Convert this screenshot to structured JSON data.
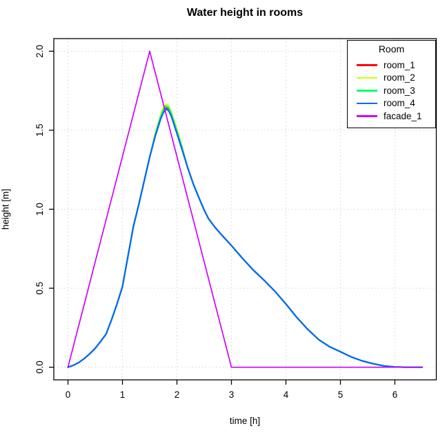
{
  "figure": {
    "title": "Water height in rooms",
    "x_axis_label": "time [h]",
    "y_axis_label": "height [m]"
  },
  "chart_data": {
    "type": "line",
    "title": "Water height in rooms",
    "xlabel": "time [h]",
    "ylabel": "height [m]",
    "xlim": [
      0,
      6.5
    ],
    "ylim": [
      0,
      2
    ],
    "xticks": [
      0,
      1,
      2,
      3,
      4,
      5,
      6
    ],
    "xtick_labels": [
      "0",
      "1",
      "2",
      "3",
      "4",
      "5",
      "6"
    ],
    "yticks": [
      0,
      0.5,
      1,
      1.5,
      2
    ],
    "ytick_labels": [
      "0.0",
      "0.5",
      "1.0",
      "1.5",
      "2.0"
    ],
    "grid": {
      "show": true,
      "style": "dotted",
      "color": "#d4d4d4"
    },
    "legend": {
      "title": "Room",
      "position": "topright"
    },
    "series": [
      {
        "name": "room_1",
        "color": "#FF0000",
        "lwd": 2.2,
        "points": [
          [
            0,
            0
          ],
          [
            0.1,
            0.012
          ],
          [
            0.2,
            0.03
          ],
          [
            0.3,
            0.055
          ],
          [
            0.4,
            0.085
          ],
          [
            0.5,
            0.12
          ],
          [
            0.6,
            0.163
          ],
          [
            0.7,
            0.21
          ],
          [
            0.8,
            0.3
          ],
          [
            0.9,
            0.4
          ],
          [
            1,
            0.51
          ],
          [
            1.1,
            0.7
          ],
          [
            1.2,
            0.89
          ],
          [
            1.3,
            1.03
          ],
          [
            1.4,
            1.18
          ],
          [
            1.5,
            1.33
          ],
          [
            1.6,
            1.466
          ],
          [
            1.7,
            1.578
          ],
          [
            1.75,
            1.624
          ],
          [
            1.8,
            1.646
          ],
          [
            1.85,
            1.635
          ],
          [
            1.9,
            1.596
          ],
          [
            2,
            1.49
          ],
          [
            2.1,
            1.378
          ],
          [
            2.2,
            1.26
          ],
          [
            2.3,
            1.16
          ],
          [
            2.4,
            1.075
          ],
          [
            2.5,
            0.995
          ],
          [
            2.58,
            0.94
          ],
          [
            2.7,
            0.885
          ],
          [
            2.8,
            0.845
          ],
          [
            3,
            0.77
          ],
          [
            3.2,
            0.69
          ],
          [
            3.4,
            0.615
          ],
          [
            3.6,
            0.55
          ],
          [
            3.8,
            0.48
          ],
          [
            4,
            0.4
          ],
          [
            4.2,
            0.315
          ],
          [
            4.4,
            0.24
          ],
          [
            4.6,
            0.175
          ],
          [
            4.8,
            0.13
          ],
          [
            5,
            0.098
          ],
          [
            5.2,
            0.065
          ],
          [
            5.4,
            0.04
          ],
          [
            5.6,
            0.022
          ],
          [
            5.8,
            0.008
          ],
          [
            6,
            0.002
          ],
          [
            6.2,
            0
          ],
          [
            6.5,
            0
          ]
        ]
      },
      {
        "name": "room_2",
        "color": "#CCFF00",
        "lwd": 2.2,
        "points": [
          [
            0,
            0
          ],
          [
            0.1,
            0.012
          ],
          [
            0.2,
            0.03
          ],
          [
            0.3,
            0.055
          ],
          [
            0.4,
            0.085
          ],
          [
            0.5,
            0.12
          ],
          [
            0.6,
            0.163
          ],
          [
            0.7,
            0.21
          ],
          [
            0.8,
            0.3
          ],
          [
            0.9,
            0.4
          ],
          [
            1,
            0.51
          ],
          [
            1.1,
            0.7
          ],
          [
            1.2,
            0.89
          ],
          [
            1.3,
            1.03
          ],
          [
            1.4,
            1.18
          ],
          [
            1.5,
            1.33
          ],
          [
            1.6,
            1.478
          ],
          [
            1.7,
            1.594
          ],
          [
            1.75,
            1.642
          ],
          [
            1.8,
            1.664
          ],
          [
            1.85,
            1.653
          ],
          [
            1.9,
            1.612
          ],
          [
            2,
            1.504
          ],
          [
            2.1,
            1.39
          ],
          [
            2.2,
            1.26
          ],
          [
            2.3,
            1.16
          ],
          [
            2.4,
            1.075
          ],
          [
            2.5,
            0.995
          ],
          [
            2.58,
            0.94
          ],
          [
            2.7,
            0.885
          ],
          [
            2.8,
            0.845
          ],
          [
            3,
            0.77
          ],
          [
            3.2,
            0.69
          ],
          [
            3.4,
            0.615
          ],
          [
            3.6,
            0.55
          ],
          [
            3.8,
            0.48
          ],
          [
            4,
            0.4
          ],
          [
            4.2,
            0.315
          ],
          [
            4.4,
            0.24
          ],
          [
            4.6,
            0.175
          ],
          [
            4.8,
            0.13
          ],
          [
            5,
            0.098
          ],
          [
            5.2,
            0.065
          ],
          [
            5.4,
            0.04
          ],
          [
            5.6,
            0.022
          ],
          [
            5.8,
            0.008
          ],
          [
            6,
            0.002
          ],
          [
            6.2,
            0
          ],
          [
            6.5,
            0
          ]
        ]
      },
      {
        "name": "room_3",
        "color": "#00FF66",
        "lwd": 2.2,
        "points": [
          [
            0,
            0
          ],
          [
            0.1,
            0.012
          ],
          [
            0.2,
            0.03
          ],
          [
            0.3,
            0.055
          ],
          [
            0.4,
            0.085
          ],
          [
            0.5,
            0.12
          ],
          [
            0.6,
            0.163
          ],
          [
            0.7,
            0.21
          ],
          [
            0.8,
            0.3
          ],
          [
            0.9,
            0.4
          ],
          [
            1,
            0.51
          ],
          [
            1.1,
            0.7
          ],
          [
            1.2,
            0.89
          ],
          [
            1.3,
            1.03
          ],
          [
            1.4,
            1.18
          ],
          [
            1.5,
            1.33
          ],
          [
            1.6,
            1.47
          ],
          [
            1.7,
            1.584
          ],
          [
            1.75,
            1.63
          ],
          [
            1.8,
            1.652
          ],
          [
            1.85,
            1.641
          ],
          [
            1.9,
            1.601
          ],
          [
            2,
            1.494
          ],
          [
            2.1,
            1.382
          ],
          [
            2.2,
            1.26
          ],
          [
            2.3,
            1.16
          ],
          [
            2.4,
            1.075
          ],
          [
            2.5,
            0.995
          ],
          [
            2.58,
            0.94
          ],
          [
            2.7,
            0.885
          ],
          [
            2.8,
            0.845
          ],
          [
            3,
            0.77
          ],
          [
            3.2,
            0.69
          ],
          [
            3.4,
            0.615
          ],
          [
            3.6,
            0.55
          ],
          [
            3.8,
            0.48
          ],
          [
            4,
            0.4
          ],
          [
            4.2,
            0.315
          ],
          [
            4.4,
            0.24
          ],
          [
            4.6,
            0.175
          ],
          [
            4.8,
            0.13
          ],
          [
            5,
            0.098
          ],
          [
            5.2,
            0.065
          ],
          [
            5.4,
            0.04
          ],
          [
            5.6,
            0.022
          ],
          [
            5.8,
            0.008
          ],
          [
            6,
            0.002
          ],
          [
            6.2,
            0
          ],
          [
            6.5,
            0
          ]
        ]
      },
      {
        "name": "room_4",
        "color": "#0066FF",
        "lwd": 2.2,
        "points": [
          [
            0,
            0
          ],
          [
            0.1,
            0.012
          ],
          [
            0.2,
            0.03
          ],
          [
            0.3,
            0.055
          ],
          [
            0.4,
            0.085
          ],
          [
            0.5,
            0.12
          ],
          [
            0.6,
            0.163
          ],
          [
            0.7,
            0.21
          ],
          [
            0.8,
            0.3
          ],
          [
            0.9,
            0.4
          ],
          [
            1,
            0.51
          ],
          [
            1.1,
            0.7
          ],
          [
            1.2,
            0.89
          ],
          [
            1.3,
            1.03
          ],
          [
            1.4,
            1.18
          ],
          [
            1.5,
            1.33
          ],
          [
            1.6,
            1.46
          ],
          [
            1.7,
            1.57
          ],
          [
            1.75,
            1.612
          ],
          [
            1.8,
            1.634
          ],
          [
            1.85,
            1.623
          ],
          [
            1.9,
            1.585
          ],
          [
            2,
            1.48
          ],
          [
            2.1,
            1.37
          ],
          [
            2.2,
            1.26
          ],
          [
            2.3,
            1.16
          ],
          [
            2.4,
            1.075
          ],
          [
            2.5,
            0.995
          ],
          [
            2.58,
            0.94
          ],
          [
            2.7,
            0.885
          ],
          [
            2.8,
            0.845
          ],
          [
            3,
            0.77
          ],
          [
            3.2,
            0.69
          ],
          [
            3.4,
            0.615
          ],
          [
            3.6,
            0.55
          ],
          [
            3.8,
            0.48
          ],
          [
            4,
            0.4
          ],
          [
            4.2,
            0.315
          ],
          [
            4.4,
            0.24
          ],
          [
            4.6,
            0.175
          ],
          [
            4.8,
            0.13
          ],
          [
            5,
            0.098
          ],
          [
            5.2,
            0.065
          ],
          [
            5.4,
            0.04
          ],
          [
            5.6,
            0.022
          ],
          [
            5.8,
            0.008
          ],
          [
            6,
            0.002
          ],
          [
            6.2,
            0
          ],
          [
            6.5,
            0
          ]
        ]
      },
      {
        "name": "facade_1",
        "color": "#CC00FF",
        "lwd": 1.7,
        "points": [
          [
            0,
            0
          ],
          [
            1.5,
            2
          ],
          [
            3,
            0
          ],
          [
            6.5,
            0
          ]
        ]
      }
    ]
  }
}
